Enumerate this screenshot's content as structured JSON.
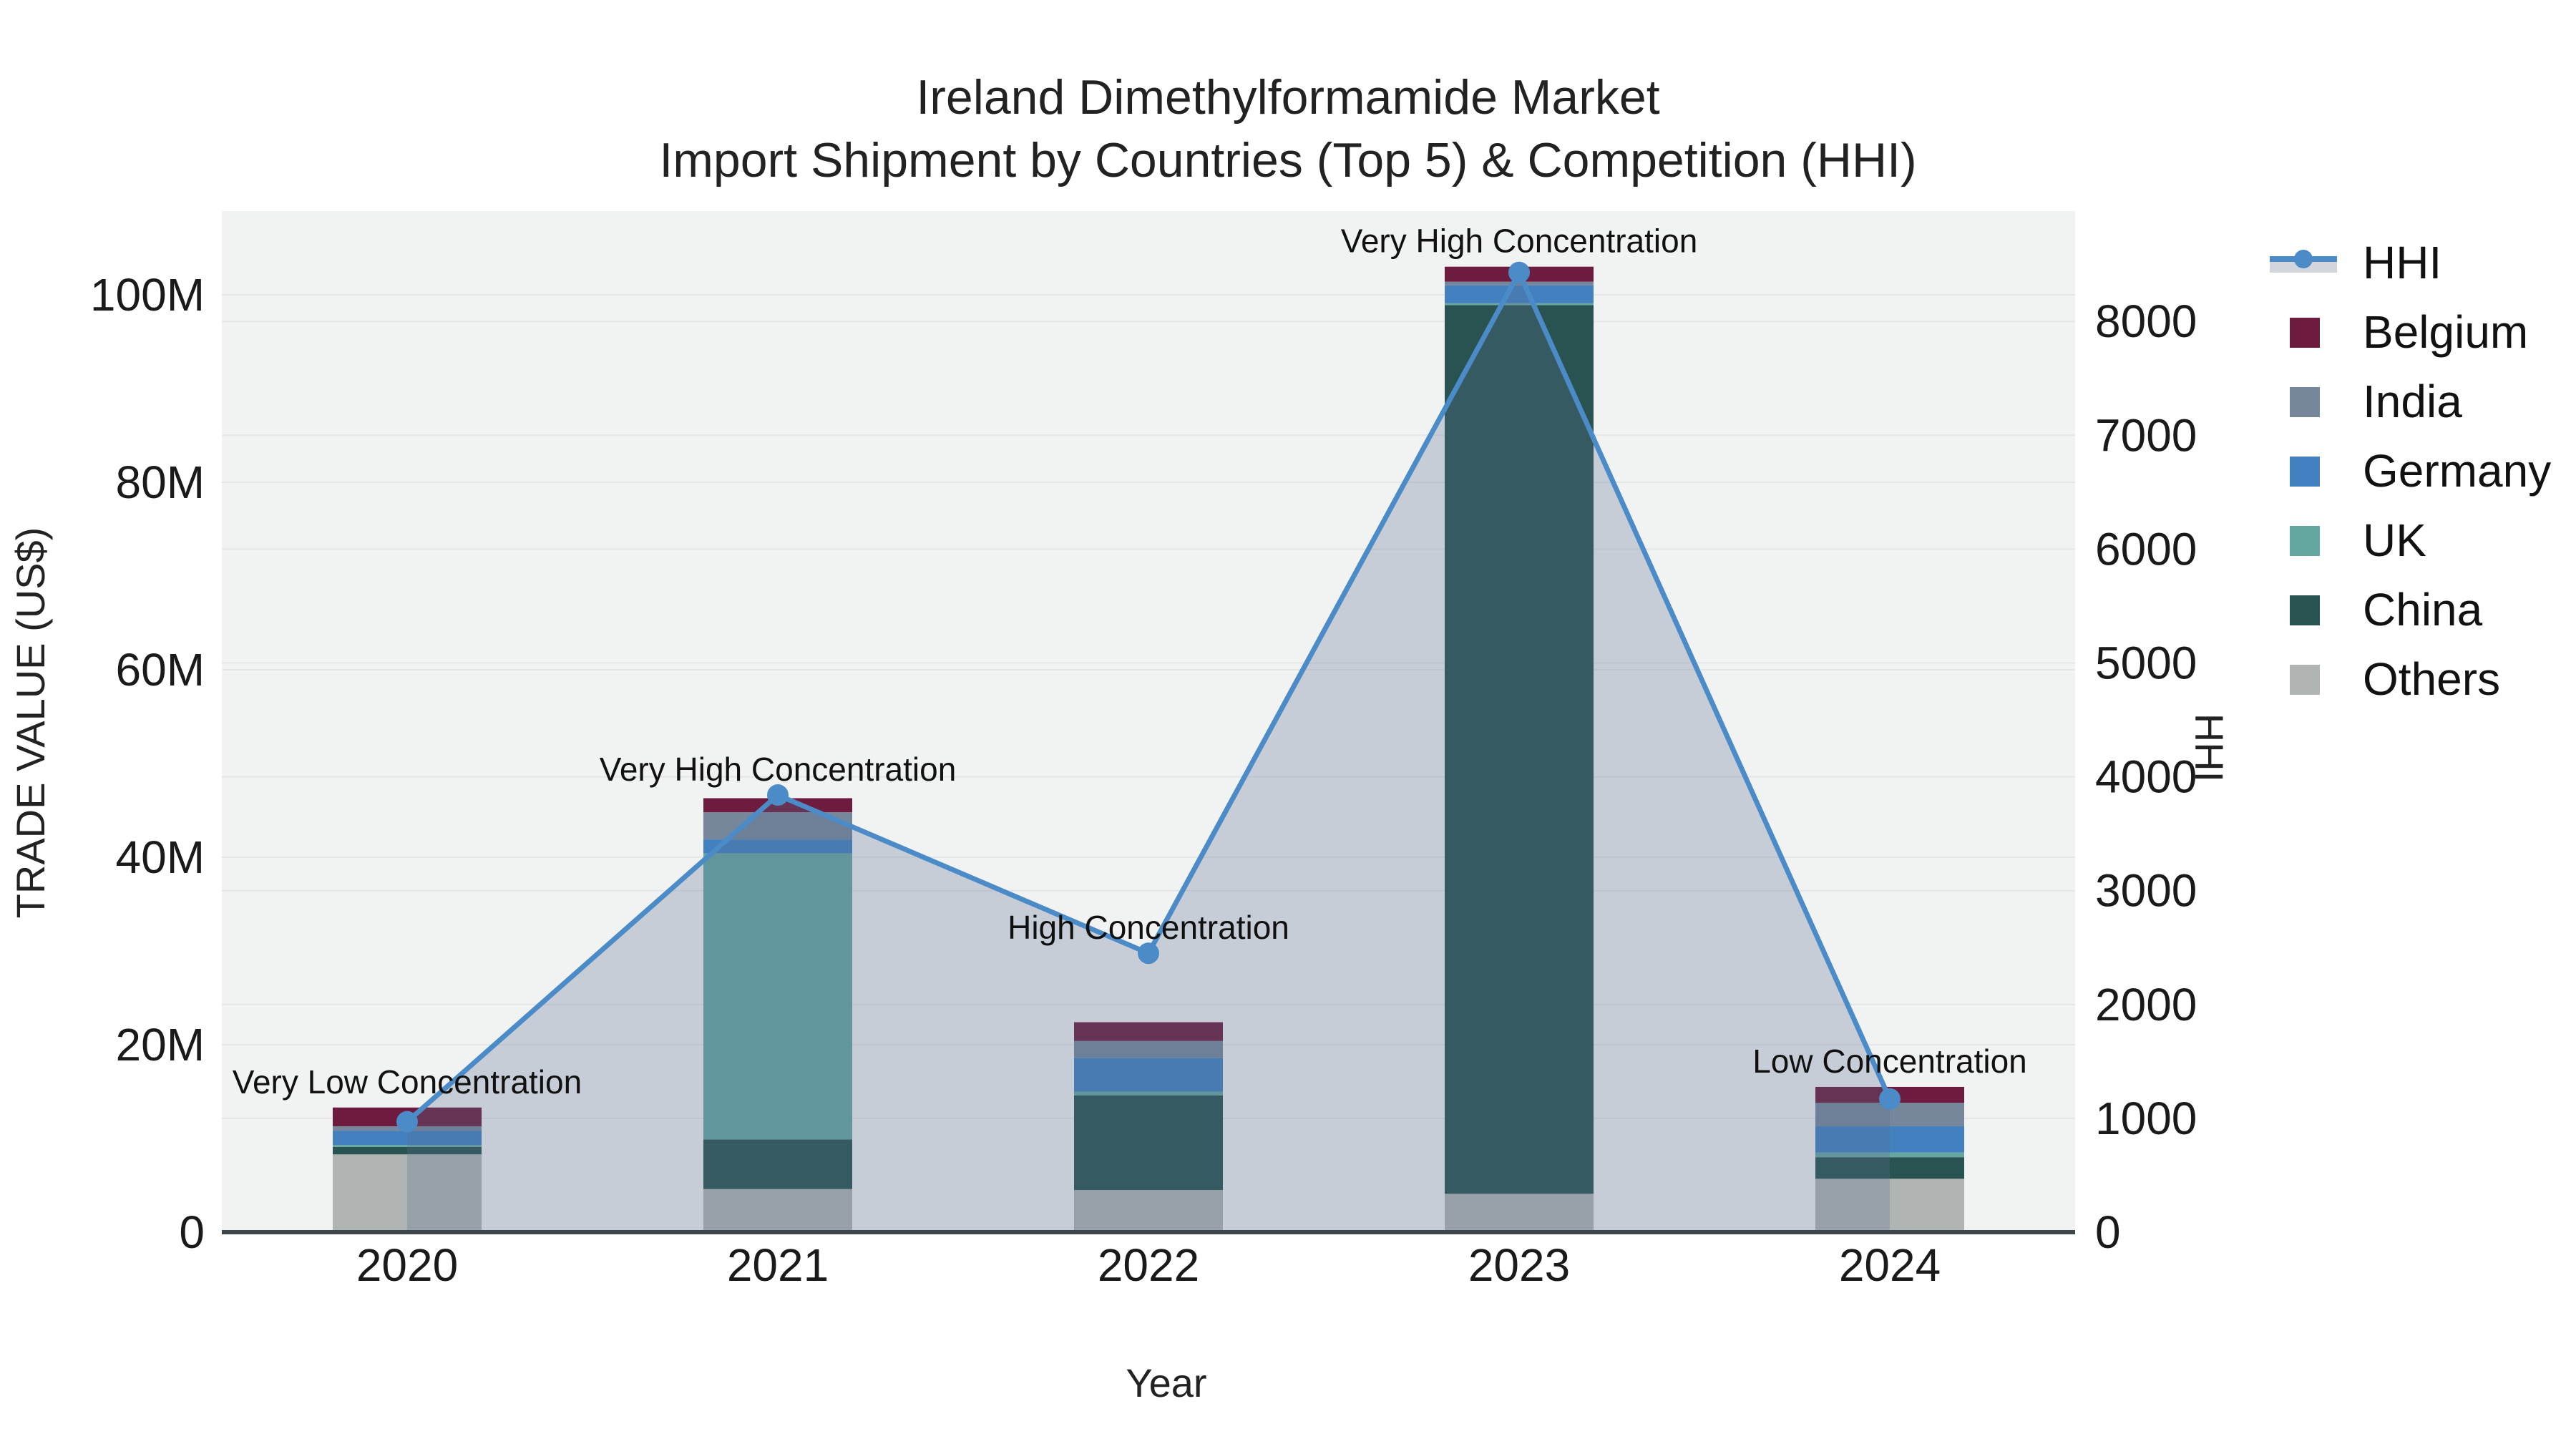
{
  "header": {
    "title_line1": "Ireland Dimethylformamide Market",
    "title_line2": "Import Shipment by Countries (Top 5) & Competition (HHI)"
  },
  "chart_data": {
    "type": "bar+line",
    "subtype": "stacked bars (left axis) with HHI line + shaded area (right axis)",
    "categories": [
      "2020",
      "2021",
      "2022",
      "2023",
      "2024"
    ],
    "xlabel": "Year",
    "ylabel": "TRADE VALUE (US$)",
    "ylabel2": "HHI",
    "stack_order_bottom_to_top": [
      "Others",
      "China",
      "UK",
      "Germany",
      "India",
      "Belgium"
    ],
    "series": [
      {
        "name": "Belgium",
        "unit": "M US$",
        "values": [
          2.0,
          1.5,
          2.0,
          1.6,
          1.7
        ]
      },
      {
        "name": "India",
        "unit": "M US$",
        "values": [
          0.5,
          2.9,
          1.8,
          0.4,
          2.5
        ]
      },
      {
        "name": "Germany",
        "unit": "M US$",
        "values": [
          1.5,
          1.5,
          3.6,
          1.9,
          2.8
        ]
      },
      {
        "name": "UK",
        "unit": "M US$",
        "values": [
          0.2,
          30.5,
          0.4,
          0.2,
          0.5
        ]
      },
      {
        "name": "China",
        "unit": "M US$",
        "values": [
          0.8,
          5.3,
          10.1,
          94.8,
          2.3
        ]
      },
      {
        "name": "Others",
        "unit": "M US$",
        "values": [
          8.3,
          4.6,
          4.5,
          4.1,
          5.7
        ]
      }
    ],
    "bar_totals_m": [
      13.3,
      46.3,
      22.4,
      103.0,
      15.5
    ],
    "hhi": {
      "name": "HHI",
      "axis": "right",
      "values": [
        970,
        3840,
        2450,
        8430,
        1170
      ]
    },
    "annotations": [
      {
        "category": "2020",
        "text": "Very Low Concentration"
      },
      {
        "category": "2021",
        "text": "Very High Concentration"
      },
      {
        "category": "2022",
        "text": "High Concentration"
      },
      {
        "category": "2023",
        "text": "Very High Concentration"
      },
      {
        "category": "2024",
        "text": "Low Concentration"
      }
    ],
    "left_axis": {
      "tick_labels": [
        "0",
        "20M",
        "40M",
        "60M",
        "80M",
        "100M"
      ],
      "tick_values_m": [
        0,
        20,
        40,
        60,
        80,
        100
      ],
      "range_m": [
        0,
        109
      ]
    },
    "right_axis": {
      "tick_labels": [
        "0",
        "1000",
        "2000",
        "3000",
        "4000",
        "5000",
        "6000",
        "7000",
        "8000"
      ],
      "tick_values": [
        0,
        1000,
        2000,
        3000,
        4000,
        5000,
        6000,
        7000,
        8000
      ],
      "range": [
        0,
        8970
      ]
    },
    "grid": true,
    "legend_position": "top-right"
  },
  "legend": {
    "items": [
      "HHI",
      "Belgium",
      "India",
      "Germany",
      "UK",
      "China",
      "Others"
    ]
  },
  "colors": {
    "series": {
      "Belgium": "#6d1c3f",
      "India": "#76879b",
      "Germany": "#4280c0",
      "UK": "#64a7a1",
      "China": "#295350",
      "Others": "#b0b4b2"
    },
    "hhi_line": "#4b8bc8",
    "area_fill": "rgba(90,110,145,0.28)",
    "plot_bg": "#f1f2f2",
    "grid": "#e4e6e8",
    "axis_line": "#3f464b",
    "text": "#1a1a1a"
  }
}
